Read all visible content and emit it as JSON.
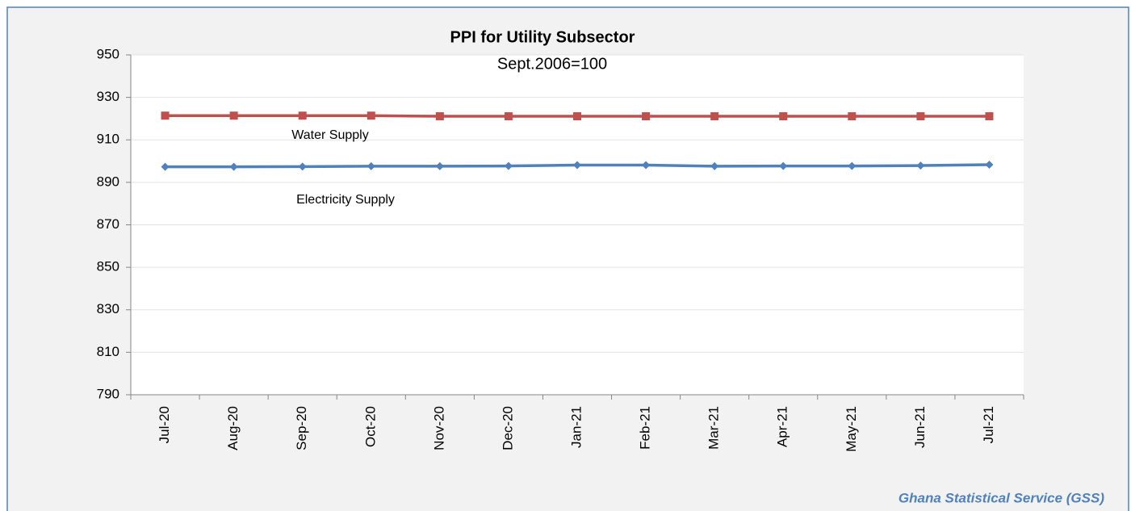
{
  "chart_data": {
    "type": "line",
    "title": "PPI  for Utility Subsector",
    "subtitle": "Sept.2006=100",
    "source": "Ghana Statistical Service (GSS)",
    "categories": [
      "Jul-20",
      "Aug-20",
      "Sep-20",
      "Oct-20",
      "Nov-20",
      "Dec-20",
      "Jan-21",
      "Feb-21",
      "Mar-21",
      "Apr-21",
      "May-21",
      "Jun-21",
      "Jul-21"
    ],
    "series": [
      {
        "name": "Water Supply",
        "color": "#c0504d",
        "marker": "square",
        "values": [
          921.4,
          921.4,
          921.4,
          921.4,
          921.1,
          921.1,
          921.1,
          921.1,
          921.1,
          921.1,
          921.1,
          921.1,
          921.1
        ]
      },
      {
        "name": "Electricity Supply",
        "color": "#4f81bd",
        "marker": "diamond",
        "values": [
          897.3,
          897.3,
          897.4,
          897.6,
          897.6,
          897.7,
          898.1,
          898.1,
          897.6,
          897.7,
          897.7,
          897.9,
          898.3
        ]
      }
    ],
    "ylim": [
      790,
      950
    ],
    "yticks": [
      790,
      810,
      830,
      850,
      870,
      890,
      910,
      930,
      950
    ],
    "grid": true
  }
}
